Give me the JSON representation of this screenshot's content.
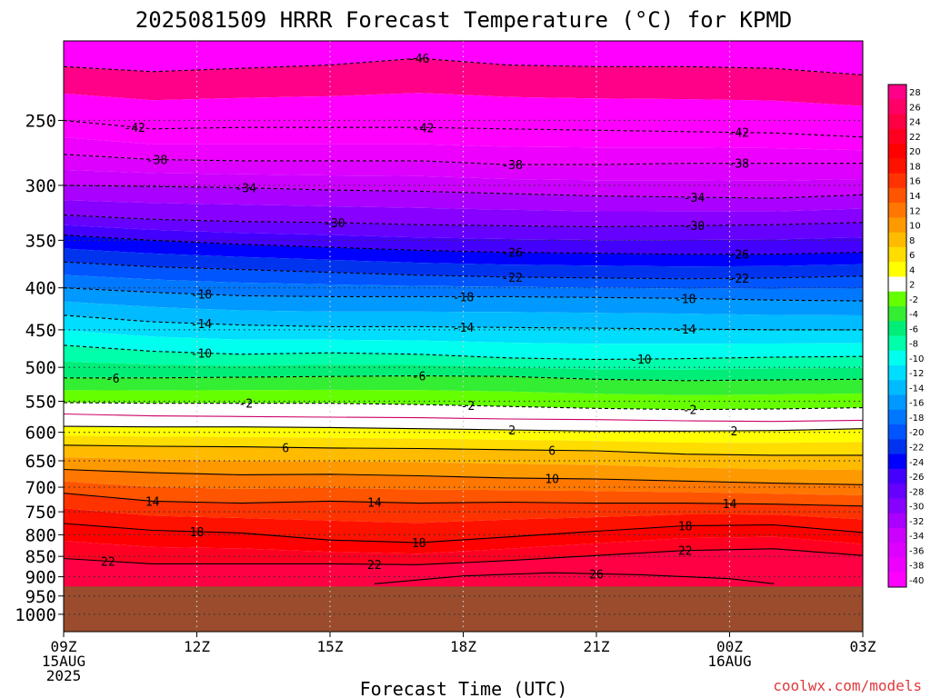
{
  "title": "2025081509 HRRR Forecast Temperature (°C) for KPMD",
  "xlabel": "Forecast Time (UTC)",
  "credit": "coolwx.com/models",
  "colors": {
    "ground": "#9a4c2c",
    "credit": "#e0383c",
    "bands": {
      "-42": "#ff00ff",
      "-40": "#ff00ff",
      "-38": "#ee00ff",
      "-36": "#dd00ff",
      "-34": "#cc00ff",
      "-32": "#aa00ff",
      "-30": "#8800ff",
      "-28": "#6600ff",
      "-26": "#4400ff",
      "-24": "#0000ff",
      "-22": "#0033ee",
      "-20": "#0055ff",
      "-18": "#0077ff",
      "-16": "#0099ff",
      "-14": "#00bbff",
      "-12": "#00ddff",
      "-10": "#00ffee",
      "-8": "#00ffaa",
      "-6": "#00ee77",
      "-4": "#33ee33",
      "-2": "#66ff00",
      "2": "#ffffff",
      "4": "#ffff00",
      "6": "#ffdd00",
      "8": "#ffbb00",
      "10": "#ff9900",
      "12": "#ff7700",
      "14": "#ff5500",
      "16": "#ff3300",
      "18": "#ff1100",
      "20": "#ff0000",
      "22": "#ff0022",
      "24": "#ff0044",
      "26": "#ff0066",
      "28": "#ff0088"
    }
  },
  "chart_data": {
    "type": "heatmap",
    "title": "2025081509 HRRR Forecast Temperature (°C) for KPMD",
    "xlabel": "Forecast Time (UTC)",
    "ylabel": "",
    "x_range_hours": [
      0,
      18
    ],
    "y_axis": {
      "variable": "pressure (hPa)",
      "scale": "log",
      "inverted": true,
      "range": [
        1050,
        200
      ]
    },
    "x_ticks": [
      {
        "hour": 0,
        "lines": [
          "09Z",
          "15AUG",
          "2025"
        ]
      },
      {
        "hour": 3,
        "lines": [
          "12Z"
        ]
      },
      {
        "hour": 6,
        "lines": [
          "15Z"
        ]
      },
      {
        "hour": 9,
        "lines": [
          "18Z"
        ]
      },
      {
        "hour": 12,
        "lines": [
          "21Z"
        ]
      },
      {
        "hour": 15,
        "lines": [
          "00Z",
          "16AUG"
        ]
      },
      {
        "hour": 18,
        "lines": [
          "03Z"
        ]
      }
    ],
    "y_ticks": [
      250,
      300,
      350,
      400,
      450,
      500,
      550,
      600,
      650,
      700,
      750,
      800,
      850,
      900,
      950,
      1000
    ],
    "gridlines": {
      "vertical_dotted": true,
      "horizontal_dotted": true
    },
    "ground_top_pressure": 925,
    "colorbar": {
      "labels": [
        "28",
        "26",
        "24",
        "22",
        "20",
        "18",
        "16",
        "14",
        "12",
        "10",
        "8",
        "6",
        "4",
        "2",
        "-2",
        "-4",
        "-6",
        "-8",
        "-10",
        "-12",
        "-14",
        "-16",
        "-18",
        "-20",
        "-22",
        "-24",
        "-26",
        "-28",
        "-30",
        "-32",
        "-34",
        "-36",
        "-38",
        "-40"
      ]
    },
    "contours": [
      {
        "level": -46,
        "points": [
          [
            0,
            215
          ],
          [
            2,
            218
          ],
          [
            4,
            216
          ],
          [
            6,
            214
          ],
          [
            8,
            210
          ],
          [
            10,
            214
          ],
          [
            12,
            215
          ],
          [
            14,
            215
          ],
          [
            16,
            216
          ],
          [
            18,
            220
          ]
        ],
        "labels": [
          {
            "hour": 8,
            "text": "-46"
          }
        ]
      },
      {
        "level": -42,
        "points": [
          [
            0,
            250
          ],
          [
            2,
            256
          ],
          [
            4,
            255
          ],
          [
            6,
            255
          ],
          [
            8,
            255
          ],
          [
            10,
            256
          ],
          [
            12,
            257
          ],
          [
            14,
            258
          ],
          [
            16,
            259
          ],
          [
            18,
            262
          ]
        ],
        "labels": [
          {
            "hour": 1.6,
            "text": "-42"
          },
          {
            "hour": 8.1,
            "text": "-42"
          },
          {
            "hour": 15.2,
            "text": "-42"
          }
        ]
      },
      {
        "level": -38,
        "points": [
          [
            0,
            275
          ],
          [
            2,
            279
          ],
          [
            4,
            280
          ],
          [
            6,
            280
          ],
          [
            8,
            280
          ],
          [
            10,
            283
          ],
          [
            12,
            283
          ],
          [
            14,
            282
          ],
          [
            16,
            282
          ],
          [
            18,
            282
          ]
        ],
        "labels": [
          {
            "hour": 2.1,
            "text": "-38"
          },
          {
            "hour": 10.1,
            "text": "-38"
          },
          {
            "hour": 15.2,
            "text": "-38"
          }
        ]
      },
      {
        "level": -34,
        "points": [
          [
            0,
            300
          ],
          [
            2,
            301
          ],
          [
            4,
            302
          ],
          [
            6,
            304
          ],
          [
            8,
            305
          ],
          [
            10,
            307
          ],
          [
            12,
            309
          ],
          [
            14,
            310
          ],
          [
            16,
            311
          ],
          [
            18,
            308
          ]
        ],
        "labels": [
          {
            "hour": 4.1,
            "text": "-34"
          },
          {
            "hour": 14.2,
            "text": "-34"
          }
        ]
      },
      {
        "level": -30,
        "points": [
          [
            0,
            326
          ],
          [
            2,
            330
          ],
          [
            4,
            332
          ],
          [
            6,
            333
          ],
          [
            8,
            335
          ],
          [
            10,
            336
          ],
          [
            12,
            337
          ],
          [
            14,
            336
          ],
          [
            16,
            335
          ],
          [
            18,
            333
          ]
        ],
        "labels": [
          {
            "hour": 6.1,
            "text": "-30"
          },
          {
            "hour": 14.2,
            "text": "-30"
          }
        ]
      },
      {
        "level": -26,
        "points": [
          [
            0,
            345
          ],
          [
            2,
            350
          ],
          [
            4,
            354
          ],
          [
            6,
            357
          ],
          [
            8,
            360
          ],
          [
            10,
            362
          ],
          [
            12,
            363
          ],
          [
            14,
            364
          ],
          [
            16,
            364
          ],
          [
            18,
            362
          ]
        ],
        "labels": [
          {
            "hour": 10.1,
            "text": "-26"
          },
          {
            "hour": 15.2,
            "text": "-26"
          }
        ]
      },
      {
        "level": -22,
        "points": [
          [
            0,
            372
          ],
          [
            2,
            377
          ],
          [
            4,
            380
          ],
          [
            6,
            383
          ],
          [
            8,
            386
          ],
          [
            10,
            388
          ],
          [
            12,
            389
          ],
          [
            14,
            390
          ],
          [
            16,
            389
          ],
          [
            18,
            387
          ]
        ],
        "labels": [
          {
            "hour": 10.1,
            "text": "-22"
          },
          {
            "hour": 15.2,
            "text": "-22"
          }
        ]
      },
      {
        "level": -18,
        "points": [
          [
            0,
            400
          ],
          [
            2,
            405
          ],
          [
            4,
            409
          ],
          [
            6,
            410
          ],
          [
            8,
            410
          ],
          [
            10,
            410
          ],
          [
            12,
            411
          ],
          [
            14,
            412
          ],
          [
            16,
            414
          ],
          [
            18,
            415
          ]
        ],
        "labels": [
          {
            "hour": 3.1,
            "text": "-18"
          },
          {
            "hour": 9,
            "text": "-18"
          },
          {
            "hour": 14,
            "text": "-18"
          }
        ]
      },
      {
        "level": -14,
        "points": [
          [
            0,
            432
          ],
          [
            2,
            440
          ],
          [
            4,
            444
          ],
          [
            6,
            446
          ],
          [
            8,
            446
          ],
          [
            10,
            447
          ],
          [
            12,
            448
          ],
          [
            14,
            449
          ],
          [
            16,
            450
          ],
          [
            18,
            450
          ]
        ],
        "labels": [
          {
            "hour": 3.1,
            "text": "-14"
          },
          {
            "hour": 9,
            "text": "-14"
          },
          {
            "hour": 14,
            "text": "-14"
          }
        ]
      },
      {
        "level": -10,
        "points": [
          [
            0,
            470
          ],
          [
            2,
            478
          ],
          [
            4,
            482
          ],
          [
            6,
            480
          ],
          [
            8,
            482
          ],
          [
            10,
            487
          ],
          [
            12,
            489
          ],
          [
            14,
            488
          ],
          [
            16,
            486
          ],
          [
            18,
            485
          ]
        ],
        "labels": [
          {
            "hour": 3.1,
            "text": "-10"
          },
          {
            "hour": 13,
            "text": "-10"
          }
        ]
      },
      {
        "level": -6,
        "points": [
          [
            0,
            515
          ],
          [
            2,
            515
          ],
          [
            4,
            514
          ],
          [
            6,
            513
          ],
          [
            8,
            512
          ],
          [
            10,
            513
          ],
          [
            12,
            517
          ],
          [
            14,
            519
          ],
          [
            16,
            518
          ],
          [
            18,
            517
          ]
        ],
        "labels": [
          {
            "hour": 1.1,
            "text": "-6"
          },
          {
            "hour": 8,
            "text": "-6"
          }
        ]
      },
      {
        "level": -2,
        "points": [
          [
            0,
            552
          ],
          [
            2,
            553
          ],
          [
            4,
            553
          ],
          [
            6,
            553
          ],
          [
            8,
            555
          ],
          [
            10,
            558
          ],
          [
            12,
            561
          ],
          [
            14,
            563
          ],
          [
            16,
            562
          ],
          [
            18,
            560
          ]
        ],
        "labels": [
          {
            "hour": 4.1,
            "text": "-2"
          },
          {
            "hour": 9.1,
            "text": "-2"
          },
          {
            "hour": 14.1,
            "text": "-2"
          }
        ]
      },
      {
        "level": 0,
        "points": [
          [
            0,
            570
          ],
          [
            2,
            573
          ],
          [
            4,
            574
          ],
          [
            6,
            575
          ],
          [
            8,
            576
          ],
          [
            10,
            578
          ],
          [
            12,
            579
          ],
          [
            14,
            581
          ],
          [
            16,
            582
          ],
          [
            18,
            580
          ]
        ],
        "labels": []
      },
      {
        "level": 2,
        "points": [
          [
            0,
            590
          ],
          [
            2,
            591
          ],
          [
            4,
            591
          ],
          [
            6,
            592
          ],
          [
            8,
            594
          ],
          [
            10,
            596
          ],
          [
            12,
            598
          ],
          [
            14,
            598
          ],
          [
            16,
            597
          ],
          [
            18,
            594
          ]
        ],
        "labels": [
          {
            "hour": 10.1,
            "text": "2"
          },
          {
            "hour": 15.1,
            "text": "2"
          }
        ]
      },
      {
        "level": 6,
        "points": [
          [
            0,
            622
          ],
          [
            2,
            624
          ],
          [
            4,
            625
          ],
          [
            6,
            627
          ],
          [
            8,
            628
          ],
          [
            10,
            630
          ],
          [
            12,
            632
          ],
          [
            14,
            638
          ],
          [
            16,
            640
          ],
          [
            18,
            640
          ]
        ],
        "labels": [
          {
            "hour": 5,
            "text": "6"
          },
          {
            "hour": 11,
            "text": "6"
          }
        ]
      },
      {
        "level": 10,
        "points": [
          [
            0,
            666
          ],
          [
            2,
            672
          ],
          [
            4,
            676
          ],
          [
            6,
            675
          ],
          [
            8,
            678
          ],
          [
            10,
            682
          ],
          [
            12,
            684
          ],
          [
            14,
            688
          ],
          [
            16,
            692
          ],
          [
            18,
            695
          ]
        ],
        "labels": [
          {
            "hour": 11,
            "text": "10"
          }
        ]
      },
      {
        "level": 14,
        "points": [
          [
            0,
            712
          ],
          [
            2,
            728
          ],
          [
            4,
            732
          ],
          [
            6,
            728
          ],
          [
            8,
            732
          ],
          [
            10,
            730
          ],
          [
            12,
            732
          ],
          [
            14,
            732
          ],
          [
            16,
            734
          ],
          [
            18,
            738
          ]
        ],
        "labels": [
          {
            "hour": 2,
            "text": "14"
          },
          {
            "hour": 7,
            "text": "14"
          },
          {
            "hour": 15,
            "text": "14"
          }
        ]
      },
      {
        "level": 18,
        "points": [
          [
            0,
            775
          ],
          [
            2,
            790
          ],
          [
            4,
            796
          ],
          [
            6,
            812
          ],
          [
            8,
            818
          ],
          [
            10,
            805
          ],
          [
            12,
            792
          ],
          [
            14,
            780
          ],
          [
            16,
            778
          ],
          [
            18,
            795
          ]
        ],
        "labels": [
          {
            "hour": 3,
            "text": "18"
          },
          {
            "hour": 8,
            "text": "18"
          },
          {
            "hour": 14,
            "text": "18"
          }
        ]
      },
      {
        "level": 22,
        "points": [
          [
            0,
            855
          ],
          [
            2,
            868
          ],
          [
            4,
            868
          ],
          [
            6,
            868
          ],
          [
            8,
            870
          ],
          [
            10,
            860
          ],
          [
            12,
            848
          ],
          [
            14,
            836
          ],
          [
            16,
            832
          ],
          [
            18,
            848
          ]
        ],
        "labels": [
          {
            "hour": 1,
            "text": "22"
          },
          {
            "hour": 7,
            "text": "22"
          },
          {
            "hour": 14,
            "text": "22"
          }
        ]
      },
      {
        "level": 26,
        "points": [
          [
            7,
            918
          ],
          [
            9,
            898
          ],
          [
            11,
            890
          ],
          [
            13,
            895
          ],
          [
            15,
            905
          ],
          [
            16,
            918
          ]
        ],
        "labels": [
          {
            "hour": 12,
            "text": "26"
          }
        ]
      }
    ]
  }
}
